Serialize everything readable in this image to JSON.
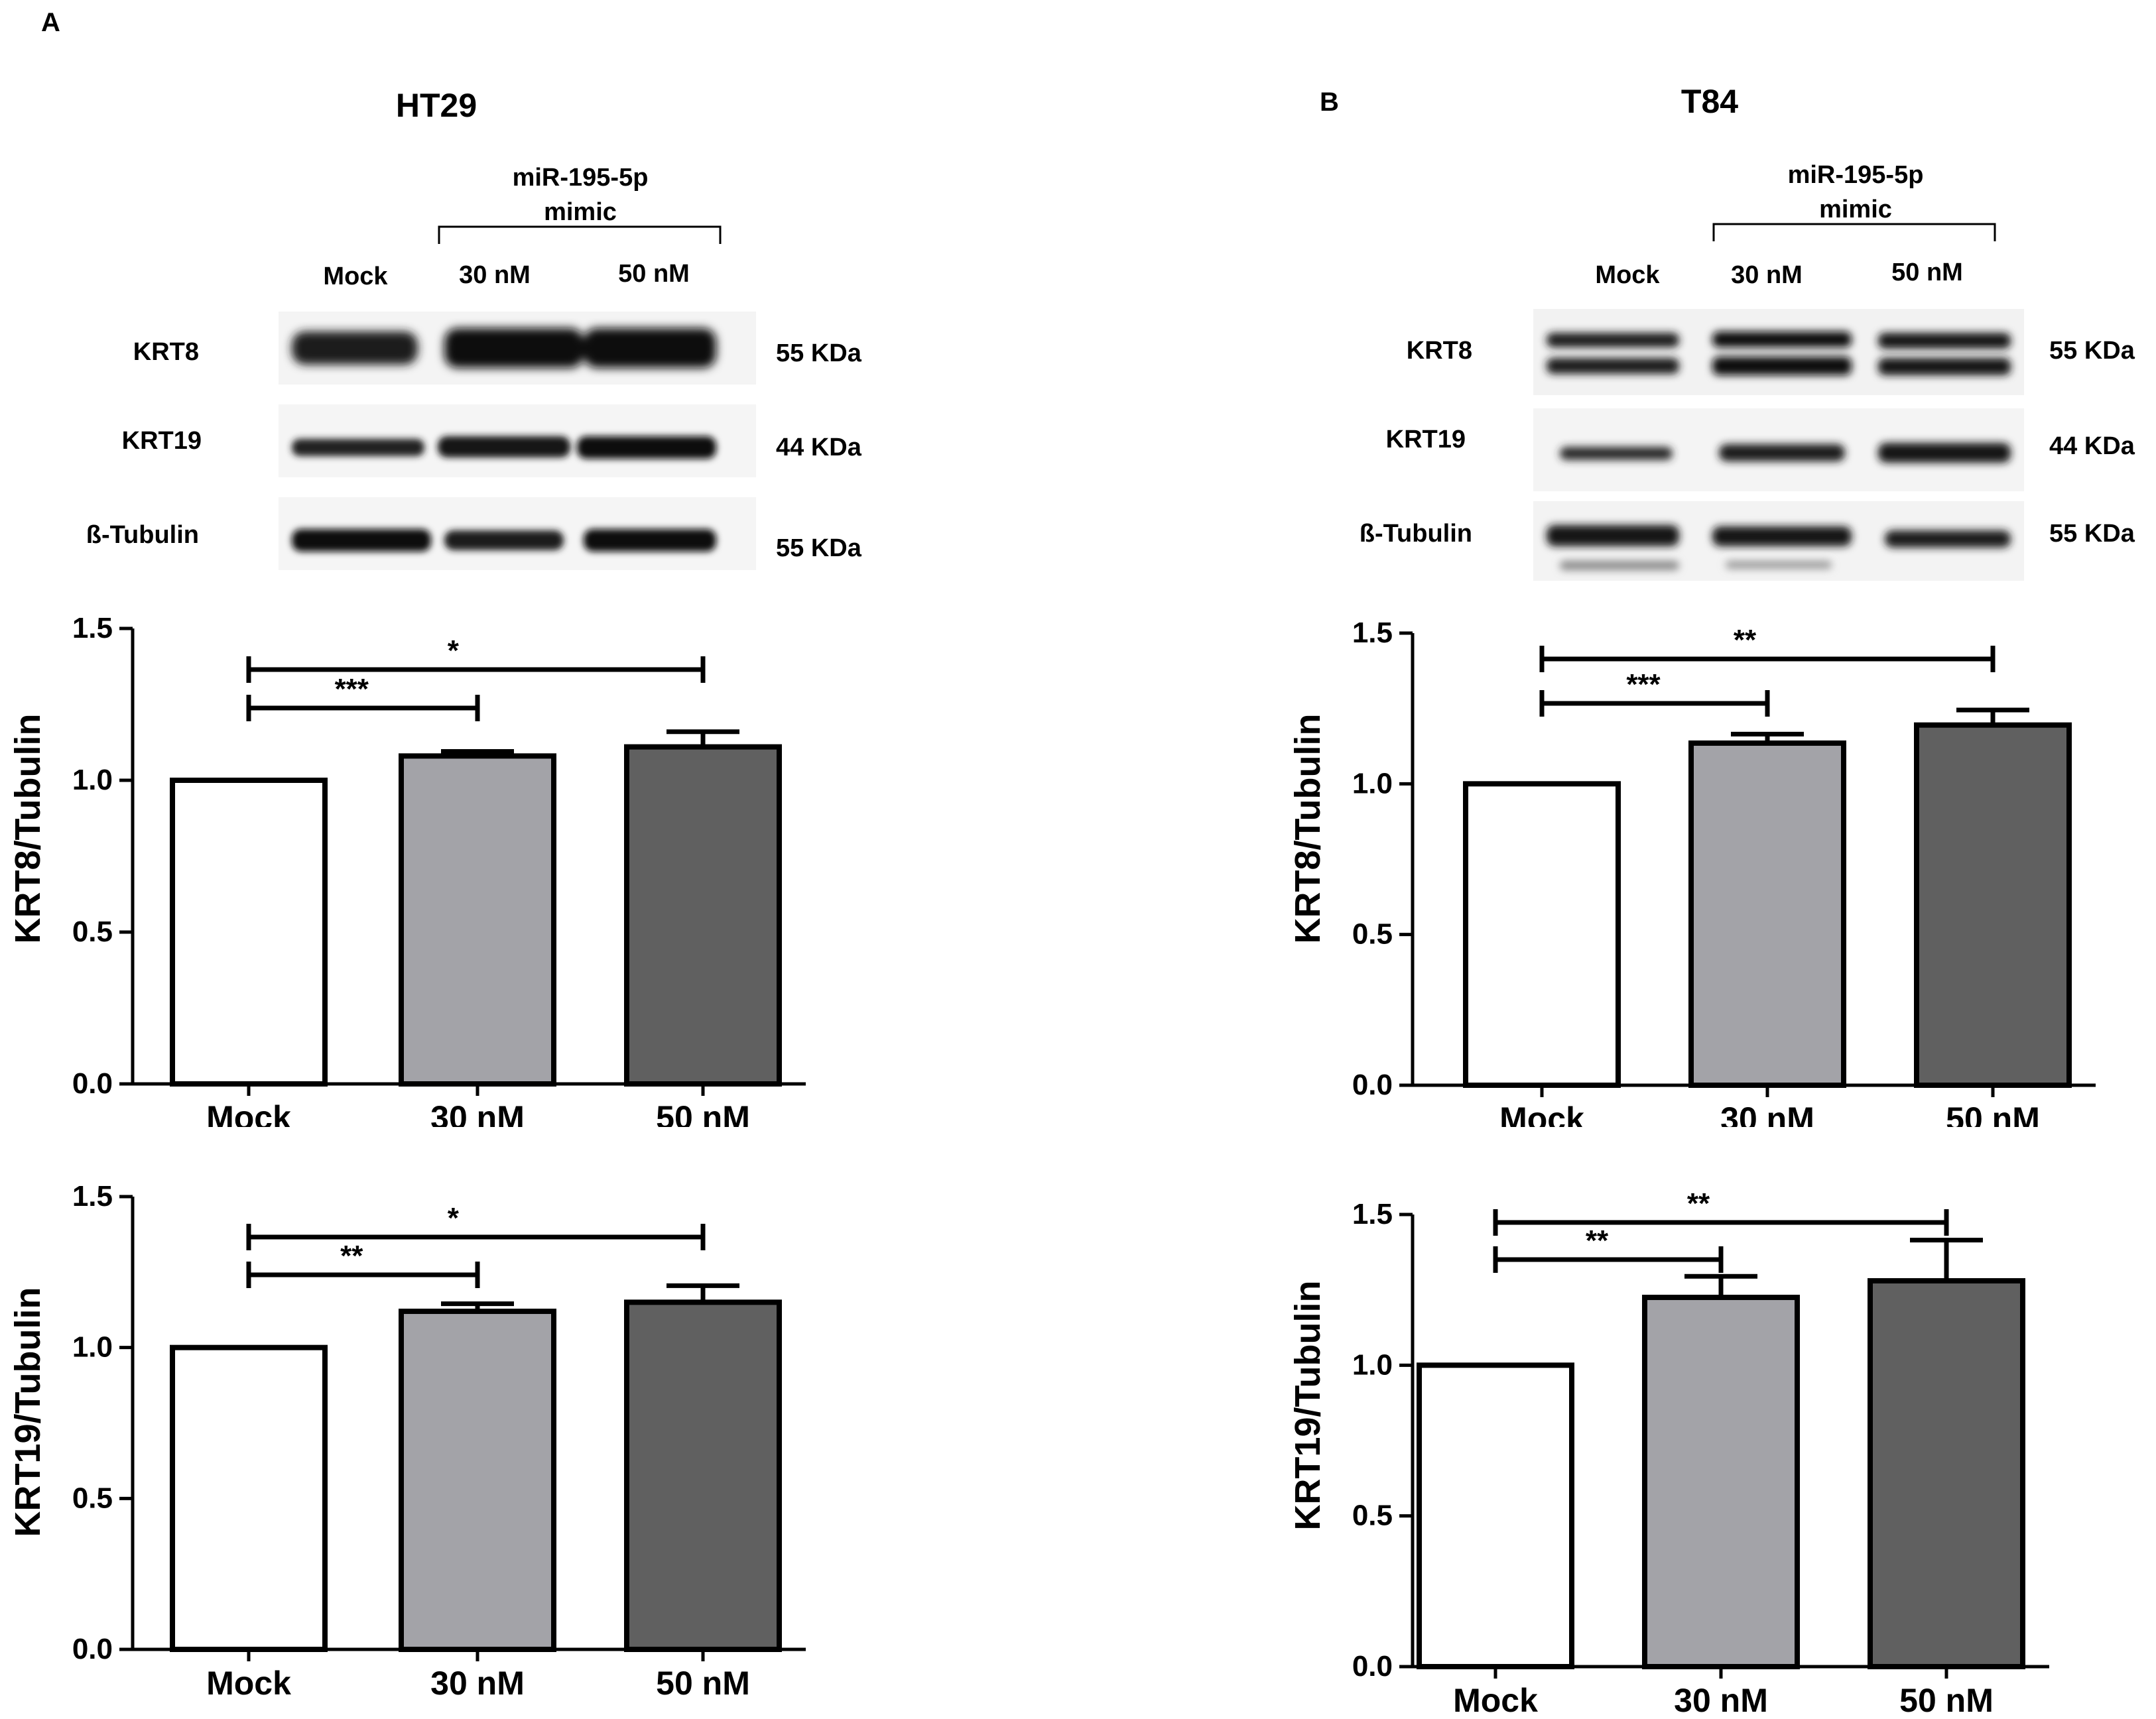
{
  "figure": {
    "panels": [
      {
        "letter": "A",
        "cell_line": "HT29",
        "blot": {
          "treatment_label": "miR-195-5p\nmimic",
          "lanes": [
            "Mock",
            "30 nM",
            "50 nM"
          ],
          "proteins": [
            {
              "name": "KRT8",
              "mw": "55 KDa"
            },
            {
              "name": "KRT19",
              "mw": "44 KDa"
            },
            {
              "name": "ß-Tubulin",
              "mw": "55 KDa"
            }
          ]
        }
      },
      {
        "letter": "B",
        "cell_line": "T84",
        "blot": {
          "treatment_label": "miR-195-5p\nmimic",
          "lanes": [
            "Mock",
            "30 nM",
            "50 nM"
          ],
          "proteins": [
            {
              "name": "KRT8",
              "mw": "55 KDa"
            },
            {
              "name": "KRT19",
              "mw": "44 KDa"
            },
            {
              "name": "ß-Tubulin",
              "mw": "55 KDa"
            }
          ]
        }
      }
    ]
  },
  "colors": {
    "mock": "#ffffff",
    "nm30": "#a3a3a8",
    "nm50": "#606060"
  },
  "chart_data": [
    {
      "type": "bar",
      "panel": "A",
      "categories": [
        "Mock",
        "30 nM",
        "50 nM"
      ],
      "values": [
        1.0,
        1.08,
        1.11
      ],
      "errors": [
        0,
        0.015,
        0.05
      ],
      "ylabel": "KRT8/Tubulin",
      "ylim": [
        0,
        1.5
      ],
      "yticks": [
        "0.0",
        "0.5",
        "1.0",
        "1.5"
      ],
      "significance": [
        {
          "from": 0,
          "to": 1,
          "label": "***"
        },
        {
          "from": 0,
          "to": 2,
          "label": "*"
        }
      ]
    },
    {
      "type": "bar",
      "panel": "A",
      "categories": [
        "Mock",
        "30 nM",
        "50 nM"
      ],
      "values": [
        1.0,
        1.12,
        1.15
      ],
      "errors": [
        0,
        0.025,
        0.055
      ],
      "ylabel": "KRT19/Tubulin",
      "ylim": [
        0,
        1.5
      ],
      "yticks": [
        "0.0",
        "0.5",
        "1.0",
        "1.5"
      ],
      "significance": [
        {
          "from": 0,
          "to": 1,
          "label": "**"
        },
        {
          "from": 0,
          "to": 2,
          "label": "*"
        }
      ]
    },
    {
      "type": "bar",
      "panel": "B",
      "categories": [
        "Mock",
        "30 nM",
        "50 nM"
      ],
      "values": [
        1.0,
        1.135,
        1.195
      ],
      "errors": [
        0,
        0.03,
        0.05
      ],
      "ylabel": "KRT8/Tubulin",
      "ylim": [
        0,
        1.5
      ],
      "yticks": [
        "0.0",
        "0.5",
        "1.0",
        "1.5"
      ],
      "significance": [
        {
          "from": 0,
          "to": 1,
          "label": "***"
        },
        {
          "from": 0,
          "to": 2,
          "label": "**"
        }
      ]
    },
    {
      "type": "bar",
      "panel": "B",
      "categories": [
        "Mock",
        "30 nM",
        "50 nM"
      ],
      "values": [
        1.0,
        1.225,
        1.28
      ],
      "errors": [
        0,
        0.07,
        0.135
      ],
      "ylabel": "KRT19/Tubulin",
      "ylim": [
        0,
        1.5
      ],
      "yticks": [
        "0.0",
        "0.5",
        "1.0",
        "1.5"
      ],
      "significance": [
        {
          "from": 0,
          "to": 1,
          "label": "**"
        },
        {
          "from": 0,
          "to": 2,
          "label": "**"
        }
      ]
    }
  ]
}
